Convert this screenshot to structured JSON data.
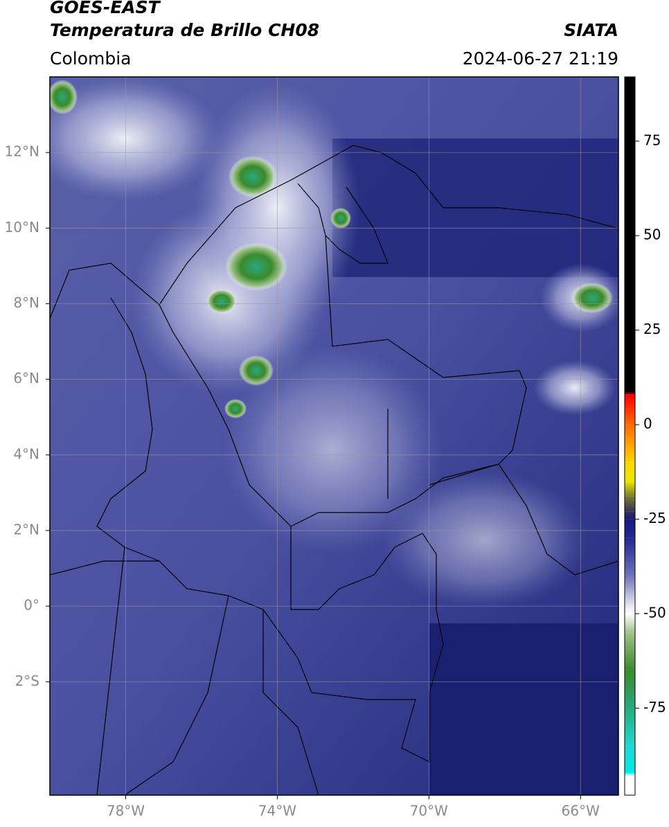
{
  "chart_data": {
    "type": "map",
    "title": "GOES-EAST",
    "subtitle": "Temperatura de Brillo CH08",
    "region": "Colombia",
    "source": "SIATA",
    "timestamp": "2024-06-27 21:19",
    "xlim": [
      -80,
      -65
    ],
    "ylim": [
      -5,
      14
    ],
    "xticks": [
      {
        "value": -78,
        "label": "78°W"
      },
      {
        "value": -74,
        "label": "74°W"
      },
      {
        "value": -70,
        "label": "70°W"
      },
      {
        "value": -66,
        "label": "66°W"
      }
    ],
    "yticks": [
      {
        "value": 12,
        "label": "12°N"
      },
      {
        "value": 10,
        "label": "10°N"
      },
      {
        "value": 8,
        "label": "8°N"
      },
      {
        "value": 6,
        "label": "6°N"
      },
      {
        "value": 4,
        "label": "4°N"
      },
      {
        "value": 2,
        "label": "2°N"
      },
      {
        "value": 0,
        "label": "0°"
      },
      {
        "value": -2,
        "label": "2°S"
      }
    ],
    "grid": true,
    "colorbar_lim": [
      -98,
      92
    ],
    "colorbar_ticks": [
      75,
      50,
      25,
      0,
      -25,
      -50,
      -75
    ],
    "colormap": [
      {
        "value": 92,
        "color": "#000000"
      },
      {
        "value": 8.5,
        "color": "#000000"
      },
      {
        "value": 8,
        "color": "#ff0000"
      },
      {
        "value": 0,
        "color": "#ff6a00"
      },
      {
        "value": -10,
        "color": "#ffd400"
      },
      {
        "value": -15,
        "color": "#e8e800"
      },
      {
        "value": -19,
        "color": "#7a7a30"
      },
      {
        "value": -23,
        "color": "#333355"
      },
      {
        "value": -25,
        "color": "#1a1a80"
      },
      {
        "value": -30,
        "color": "#22298f"
      },
      {
        "value": -40,
        "color": "#6f74b8"
      },
      {
        "value": -48,
        "color": "#e8e8f4"
      },
      {
        "value": -50,
        "color": "#ffffff"
      },
      {
        "value": -55,
        "color": "#9ec28a"
      },
      {
        "value": -65,
        "color": "#3a8a2a"
      },
      {
        "value": -75,
        "color": "#2aa880"
      },
      {
        "value": -85,
        "color": "#20d8d0"
      },
      {
        "value": -92,
        "color": "#00e8e8"
      },
      {
        "value": -93,
        "color": "#ffffff"
      },
      {
        "value": -98,
        "color": "#ffffff"
      }
    ]
  }
}
